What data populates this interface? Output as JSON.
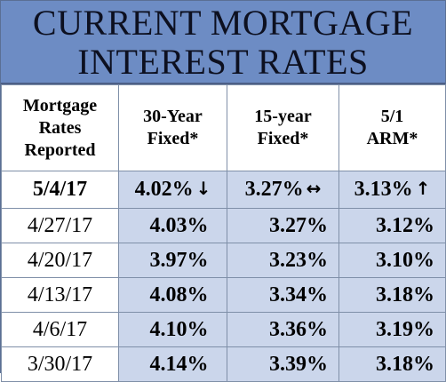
{
  "banner": {
    "line1": "CURRENT MORTGAGE",
    "line2": "INTEREST RATES"
  },
  "headers": {
    "col0": [
      "Mortgage",
      "Rates",
      "Reported"
    ],
    "col1": [
      "30-Year",
      "Fixed*"
    ],
    "col2": [
      "15-year",
      "Fixed*"
    ],
    "col3": [
      "5/1",
      "ARM*"
    ]
  },
  "latest": {
    "date": "5/4/17",
    "fixed30": "4.02%",
    "fixed30_arrow": "↓",
    "fixed15": "3.27%",
    "fixed15_arrow": "↔",
    "arm51": "3.13%",
    "arm51_arrow": "↑"
  },
  "rows": [
    {
      "date": "4/27/17",
      "fixed30": "4.03%",
      "fixed15": "3.27%",
      "arm51": "3.12%"
    },
    {
      "date": "4/20/17",
      "fixed30": "3.97%",
      "fixed15": "3.23%",
      "arm51": "3.10%"
    },
    {
      "date": "4/13/17",
      "fixed30": "4.08%",
      "fixed15": "3.34%",
      "arm51": "3.18%"
    },
    {
      "date": "4/6/17",
      "fixed30": "4.10%",
      "fixed15": "3.36%",
      "arm51": "3.19%"
    },
    {
      "date": "3/30/17",
      "fixed30": "4.14%",
      "fixed15": "3.39%",
      "arm51": "3.18%"
    }
  ]
}
